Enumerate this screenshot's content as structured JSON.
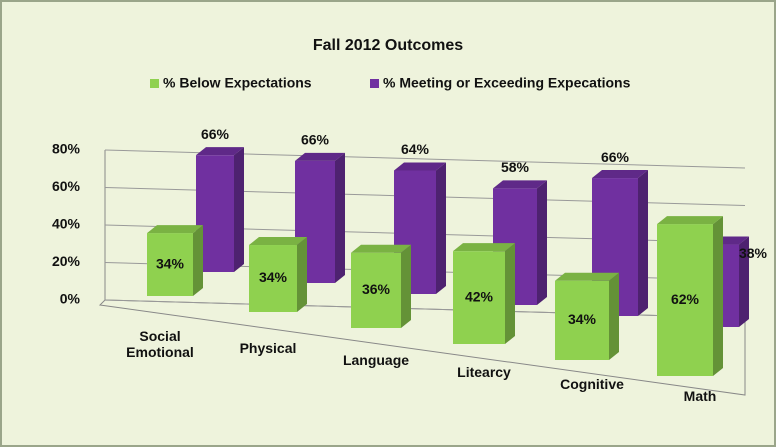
{
  "chart_data": {
    "type": "bar3d",
    "title": "Fall 2012 Outcomes",
    "categories": [
      "Social Emotional",
      "Physical",
      "Language",
      "Litearcy",
      "Cognitive",
      "Math"
    ],
    "series": [
      {
        "name": "% Below Expectations",
        "color": "#8fd14f",
        "values": [
          34,
          34,
          36,
          42,
          34,
          62
        ],
        "value_labels": [
          "34%",
          "34%",
          "36%",
          "42%",
          "34%",
          "62%"
        ]
      },
      {
        "name": "% Meeting or Exceeding Expecations",
        "color": "#7030a0",
        "values": [
          66,
          66,
          64,
          58,
          66,
          38
        ],
        "value_labels": [
          "66%",
          "66%",
          "64%",
          "58%",
          "66%",
          "38%"
        ]
      }
    ],
    "ylim": [
      0,
      80
    ],
    "yticks": [
      {
        "value": 0,
        "label": "0%"
      },
      {
        "value": 20,
        "label": "20%"
      },
      {
        "value": 40,
        "label": "40%"
      },
      {
        "value": 60,
        "label": "60%"
      },
      {
        "value": 80,
        "label": "80%"
      }
    ],
    "grid": true
  }
}
